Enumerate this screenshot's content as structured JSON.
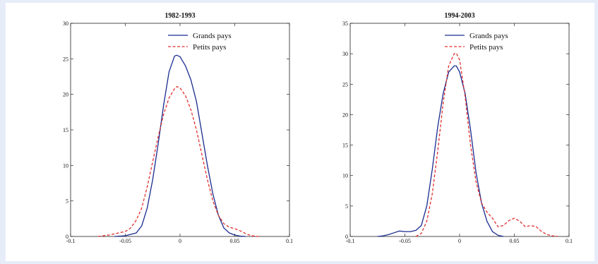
{
  "chart_data": [
    {
      "type": "line",
      "title": "1982-1993",
      "xlabel": "",
      "ylabel": "",
      "xlim": [
        -0.1,
        0.1
      ],
      "ylim": [
        0,
        30
      ],
      "xticks": [
        -0.1,
        -0.05,
        0,
        0.05,
        0.1
      ],
      "xtick_labels": [
        "-0.1",
        "-0.05",
        "0",
        "0.05",
        "0.1"
      ],
      "yticks": [
        0,
        5,
        10,
        15,
        20,
        25,
        30
      ],
      "ytick_labels": [
        "0",
        "5",
        "10",
        "15",
        "20",
        "25",
        "30"
      ],
      "legend_position": "top-right",
      "series": [
        {
          "name": "Grands pays",
          "color": "#1a2b8f",
          "dash": "solid",
          "x": [
            -0.06,
            -0.05,
            -0.04,
            -0.035,
            -0.03,
            -0.025,
            -0.02,
            -0.015,
            -0.01,
            -0.005,
            -0.003,
            0,
            0.005,
            0.01,
            0.015,
            0.02,
            0.025,
            0.03,
            0.035,
            0.04,
            0.045,
            0.05,
            0.055,
            0.06
          ],
          "y": [
            0,
            0.1,
            0.5,
            1.5,
            4,
            8,
            13,
            18.5,
            23.2,
            25.4,
            25.5,
            25.3,
            24,
            22,
            19,
            14.5,
            10,
            6,
            3,
            1.2,
            0.5,
            0.2,
            0.05,
            0
          ]
        },
        {
          "name": "Petits pays",
          "color": "#e03030",
          "dash": "dashed",
          "x": [
            -0.075,
            -0.065,
            -0.05,
            -0.045,
            -0.04,
            -0.035,
            -0.03,
            -0.025,
            -0.02,
            -0.015,
            -0.01,
            -0.005,
            -0.003,
            0,
            0.005,
            0.01,
            0.015,
            0.02,
            0.025,
            0.03,
            0.035,
            0.04,
            0.045,
            0.05,
            0.055,
            0.06,
            0.065,
            0.072
          ],
          "y": [
            0,
            0.2,
            0.7,
            1.2,
            2.3,
            4,
            7,
            10.5,
            14,
            17.2,
            19.5,
            20.8,
            21.1,
            20.9,
            19.8,
            17.8,
            15,
            11.5,
            8,
            5,
            3,
            1.8,
            1.3,
            1.1,
            0.8,
            0.4,
            0.1,
            0
          ]
        }
      ]
    },
    {
      "type": "line",
      "title": "1994-2003",
      "xlabel": "",
      "ylabel": "",
      "xlim": [
        -0.1,
        0.1
      ],
      "ylim": [
        0,
        35
      ],
      "xticks": [
        -0.1,
        -0.05,
        0,
        0.05,
        0.1
      ],
      "xtick_labels": [
        "-0.1",
        "-0.05",
        "0",
        "0.05",
        "0.1"
      ],
      "yticks": [
        0,
        5,
        10,
        15,
        20,
        25,
        30,
        35
      ],
      "ytick_labels": [
        "0",
        "5",
        "10",
        "15",
        "20",
        "25",
        "30",
        "35"
      ],
      "legend_position": "top-right",
      "series": [
        {
          "name": "Grands pays",
          "color": "#1a2b8f",
          "dash": "solid",
          "x": [
            -0.075,
            -0.07,
            -0.065,
            -0.06,
            -0.055,
            -0.05,
            -0.045,
            -0.04,
            -0.035,
            -0.03,
            -0.025,
            -0.02,
            -0.015,
            -0.01,
            -0.005,
            -0.003,
            0,
            0.005,
            0.01,
            0.015,
            0.02,
            0.025,
            0.03,
            0.035,
            0.04
          ],
          "y": [
            0,
            0.1,
            0.3,
            0.6,
            0.9,
            0.8,
            0.8,
            1.0,
            1.8,
            5,
            11,
            18,
            23.5,
            27,
            28,
            28,
            27,
            23.5,
            17.5,
            10.5,
            5.5,
            2.5,
            0.8,
            0.2,
            0
          ]
        },
        {
          "name": "Petits pays",
          "color": "#e03030",
          "dash": "dashed",
          "x": [
            -0.04,
            -0.035,
            -0.03,
            -0.025,
            -0.02,
            -0.015,
            -0.01,
            -0.005,
            -0.003,
            0,
            0.005,
            0.01,
            0.015,
            0.02,
            0.025,
            0.03,
            0.035,
            0.04,
            0.045,
            0.05,
            0.055,
            0.06,
            0.065,
            0.07,
            0.075,
            0.08,
            0.085,
            0.09
          ],
          "y": [
            0,
            0.5,
            2.5,
            7,
            14,
            22,
            28,
            30,
            30.1,
            29,
            23,
            15,
            9,
            5.5,
            4,
            3,
            1.6,
            1.8,
            2.6,
            3,
            2.5,
            1.6,
            1.8,
            1.6,
            0.8,
            0.3,
            0.1,
            0
          ]
        }
      ]
    }
  ]
}
